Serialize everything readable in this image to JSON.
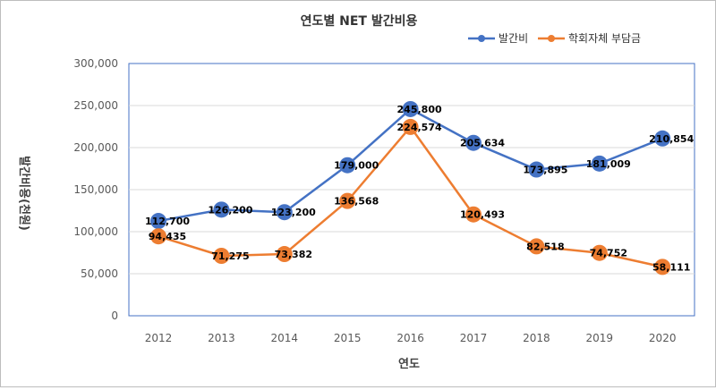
{
  "chart_data": {
    "type": "line",
    "title": "연도별 NET 발간비용",
    "xlabel": "연도",
    "ylabel": "발간비용(천원)",
    "categories": [
      "2012",
      "2013",
      "2014",
      "2015",
      "2016",
      "2017",
      "2018",
      "2019",
      "2020"
    ],
    "ylim": [
      0,
      300000
    ],
    "yticks": [
      0,
      50000,
      100000,
      150000,
      200000,
      250000,
      300000
    ],
    "ytick_labels": [
      "0",
      "50,000",
      "100,000",
      "150,000",
      "200,000",
      "250,000",
      "300,000"
    ],
    "grid": true,
    "legend_position": "top-right",
    "series": [
      {
        "name": "발간비",
        "color": "#4472C4",
        "values": [
          112700,
          126200,
          123200,
          179000,
          245800,
          205634,
          173895,
          181009,
          210854
        ],
        "labels": [
          "112,700",
          "126,200",
          "123,200",
          "179,000",
          "245,800",
          "205,634",
          "173,895",
          "181,009",
          "210,854"
        ]
      },
      {
        "name": "학회자체 부담금",
        "color": "#ED7D31",
        "values": [
          94435,
          71275,
          73382,
          136568,
          224574,
          120493,
          82518,
          74752,
          58111
        ],
        "labels": [
          "94,435",
          "71,275",
          "73,382",
          "136,568",
          "224,574",
          "120,493",
          "82,518",
          "74,752",
          "58,111"
        ]
      }
    ]
  }
}
